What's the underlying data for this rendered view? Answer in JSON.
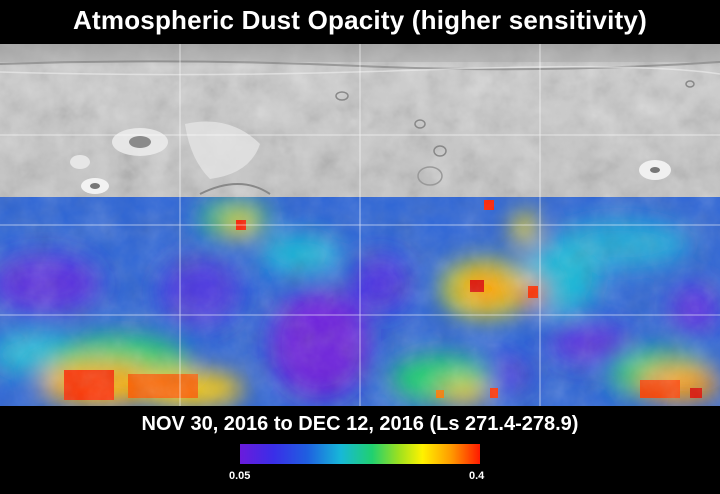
{
  "title": "Atmospheric Dust Opacity (higher sensitivity)",
  "date_range": "NOV 30, 2016 to DEC 12, 2016 (Ls 271.4-278.9)",
  "colorbar": {
    "min_label": "0.05",
    "max_label": "0.4",
    "colors": [
      "#6a1bdc",
      "#3a2ee8",
      "#1f5fe0",
      "#17b8d8",
      "#20d070",
      "#9be020",
      "#fff200",
      "#ff9a00",
      "#ff1a00"
    ]
  },
  "map": {
    "terrain_color": "#c8c8c8",
    "grid_color": "#ffffff"
  }
}
